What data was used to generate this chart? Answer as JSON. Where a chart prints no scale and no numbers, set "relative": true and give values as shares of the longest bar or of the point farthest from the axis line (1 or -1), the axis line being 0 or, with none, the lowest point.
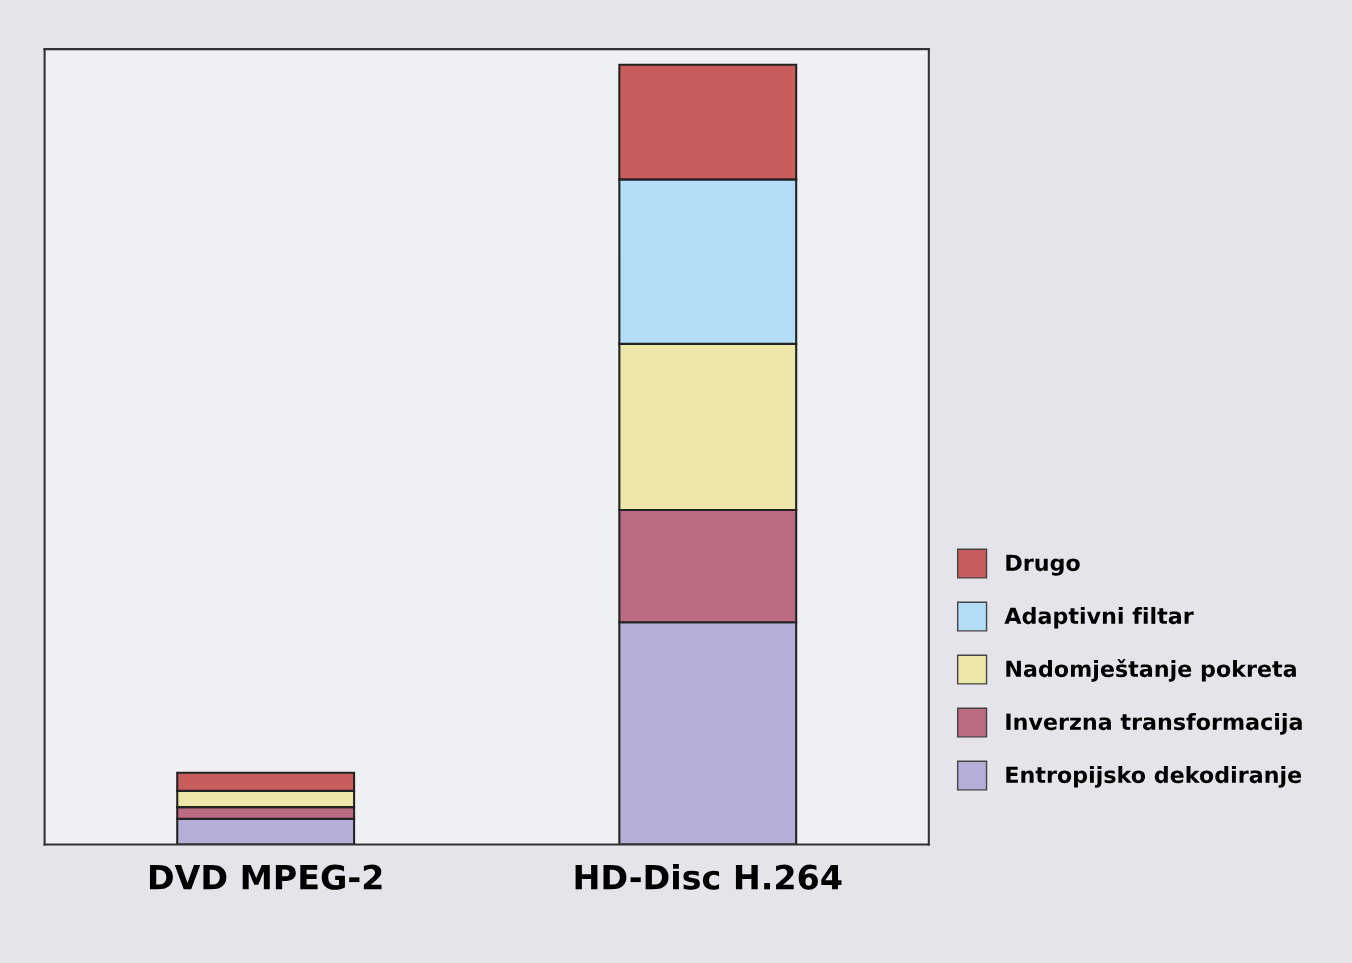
{
  "chart_data": {
    "type": "bar",
    "stacked": true,
    "relative": true,
    "legend": "right",
    "grid": false,
    "categories": [
      "DVD MPEG-2",
      "HD-Disc H.264"
    ],
    "series": [
      {
        "name": "Entropijsko dekodiranje",
        "color": "#b3afd9",
        "values": [
          0.033,
          0.285
        ]
      },
      {
        "name": "Inverzna transformacija",
        "color": "#bb6a82",
        "values": [
          0.015,
          0.144
        ]
      },
      {
        "name": "Nadomještanje pokreta",
        "color": "#ece7a9",
        "values": [
          0.021,
          0.213
        ]
      },
      {
        "name": "Adaptivni filtar",
        "color": "#b3ddf6",
        "values": [
          0,
          0.211
        ]
      },
      {
        "name": "Drugo",
        "color": "#c95d5d",
        "values": [
          0.023,
          0.147
        ]
      }
    ]
  }
}
